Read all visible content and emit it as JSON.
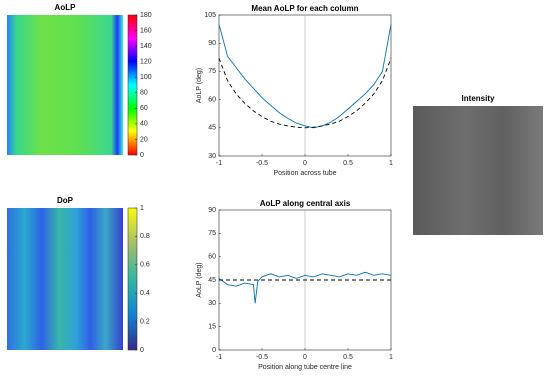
{
  "chart_data": [
    {
      "type": "line",
      "title": "Mean AoLP for each column",
      "xlabel": "Position across tube",
      "ylabel": "AoLP (deg)",
      "xlim": [
        -1,
        1
      ],
      "xticks": [
        -1,
        -0.5,
        0,
        0.5,
        1
      ],
      "ylim": [
        30,
        105
      ],
      "yticks": [
        30,
        45,
        60,
        75,
        90,
        105
      ],
      "series": [
        {
          "color": "#0072bd",
          "style": "solid",
          "x": [
            -1,
            -0.9,
            -0.8,
            -0.7,
            -0.6,
            -0.5,
            -0.4,
            -0.3,
            -0.2,
            -0.1,
            0,
            0.1,
            0.2,
            0.3,
            0.4,
            0.5,
            0.6,
            0.7,
            0.8,
            0.9,
            1
          ],
          "values": [
            100,
            83,
            77,
            71,
            66,
            61,
            57,
            53,
            50,
            47.5,
            46,
            45,
            46,
            48,
            51,
            55,
            59,
            63,
            68,
            75,
            100
          ]
        },
        {
          "color": "#000000",
          "style": "dashed",
          "x": [
            -1,
            -0.9,
            -0.8,
            -0.7,
            -0.6,
            -0.5,
            -0.4,
            -0.3,
            -0.2,
            -0.1,
            0,
            0.1,
            0.2,
            0.3,
            0.4,
            0.5,
            0.6,
            0.7,
            0.8,
            0.9,
            1
          ],
          "values": [
            82,
            70,
            63,
            58,
            54,
            51,
            48.5,
            47,
            46,
            45.3,
            45,
            45.3,
            46,
            47,
            48.5,
            51,
            54,
            58,
            63,
            70,
            82
          ]
        }
      ]
    },
    {
      "type": "line",
      "title": "AoLP along central axis",
      "xlabel": "Position along tube centre line",
      "ylabel": "AoLP (deg)",
      "xlim": [
        -1,
        1
      ],
      "xticks": [
        -1,
        -0.5,
        0,
        0.5,
        1
      ],
      "ylim": [
        0,
        90
      ],
      "yticks": [
        0,
        15,
        30,
        45,
        60,
        75,
        90
      ],
      "series": [
        {
          "color": "#0072bd",
          "style": "solid",
          "x": [
            -1,
            -0.9,
            -0.8,
            -0.7,
            -0.6,
            -0.58,
            -0.55,
            -0.5,
            -0.4,
            -0.3,
            -0.2,
            -0.1,
            0,
            0.1,
            0.2,
            0.3,
            0.4,
            0.5,
            0.6,
            0.7,
            0.8,
            0.9,
            1
          ],
          "values": [
            46,
            42,
            41,
            43,
            42,
            30,
            44,
            47,
            49,
            47,
            48,
            46,
            48,
            47,
            49,
            48,
            47,
            49,
            48,
            50,
            48,
            49,
            48
          ]
        },
        {
          "color": "#000000",
          "style": "dashed",
          "x": [
            -1,
            1
          ],
          "values": [
            45,
            45
          ]
        }
      ]
    }
  ],
  "images": [
    {
      "title": "AoLP",
      "colormap": "hsv",
      "clim": [
        0,
        180
      ],
      "cticks": [
        0,
        20,
        40,
        60,
        80,
        100,
        120,
        140,
        160,
        180
      ]
    },
    {
      "title": "DoP",
      "colormap": "parula",
      "clim": [
        0,
        1
      ],
      "cticks": [
        0,
        0.2,
        0.4,
        0.6,
        0.8,
        1
      ]
    },
    {
      "title": "Intensity",
      "colormap": "gray"
    }
  ]
}
